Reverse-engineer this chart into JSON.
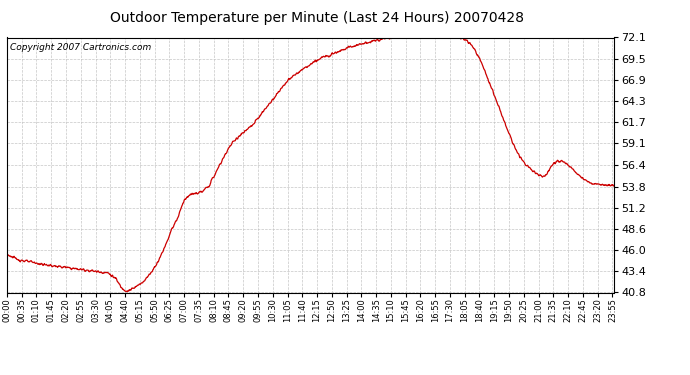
{
  "title": "Outdoor Temperature per Minute (Last 24 Hours) 20070428",
  "copyright_text": "Copyright 2007 Cartronics.com",
  "line_color": "#cc0000",
  "background_color": "#ffffff",
  "plot_bg_color": "#ffffff",
  "grid_color": "#c0c0c0",
  "ylim": [
    40.8,
    72.1
  ],
  "yticks": [
    40.8,
    43.4,
    46.0,
    48.6,
    51.2,
    53.8,
    56.4,
    59.1,
    61.7,
    64.3,
    66.9,
    69.5,
    72.1
  ],
  "xtick_labels": [
    "00:00",
    "00:35",
    "01:10",
    "01:45",
    "02:20",
    "02:55",
    "03:30",
    "04:05",
    "04:40",
    "05:15",
    "05:50",
    "06:25",
    "07:00",
    "07:35",
    "08:10",
    "08:45",
    "09:20",
    "09:55",
    "10:30",
    "11:05",
    "11:40",
    "12:15",
    "12:50",
    "13:25",
    "14:00",
    "14:35",
    "15:10",
    "15:45",
    "16:20",
    "16:55",
    "17:30",
    "18:05",
    "18:40",
    "19:15",
    "19:50",
    "20:25",
    "21:00",
    "21:35",
    "22:10",
    "22:45",
    "23:20",
    "23:55"
  ],
  "ctrl_hours": [
    0,
    0.3,
    0.5,
    1.0,
    1.5,
    2.0,
    2.5,
    3.0,
    3.5,
    4.0,
    4.3,
    4.5,
    4.6,
    4.75,
    5.0,
    5.25,
    5.5,
    5.75,
    6.0,
    6.25,
    6.5,
    6.75,
    7.0,
    7.25,
    7.5,
    7.75,
    8.0,
    8.25,
    8.5,
    8.75,
    9.0,
    9.25,
    9.5,
    9.75,
    10.0,
    10.25,
    10.5,
    10.75,
    11.0,
    11.25,
    11.5,
    11.75,
    12.0,
    12.25,
    12.5,
    12.75,
    13.0,
    13.25,
    13.5,
    13.75,
    14.0,
    14.25,
    14.5,
    14.75,
    15.0,
    15.25,
    15.5,
    15.75,
    16.0,
    16.25,
    16.5,
    16.75,
    17.0,
    17.25,
    17.5,
    17.75,
    18.0,
    18.25,
    18.5,
    18.75,
    19.0,
    19.25,
    19.5,
    19.75,
    20.0,
    20.25,
    20.5,
    20.75,
    21.0,
    21.25,
    21.5,
    21.75,
    22.0,
    22.25,
    22.5,
    22.75,
    23.0,
    23.25,
    23.5,
    23.75,
    23.99
  ],
  "ctrl_temps": [
    45.5,
    45.0,
    44.8,
    44.5,
    44.2,
    44.0,
    43.8,
    43.6,
    43.4,
    43.2,
    42.5,
    41.5,
    41.2,
    41.0,
    41.3,
    41.8,
    42.5,
    43.5,
    44.8,
    46.5,
    48.5,
    50.0,
    52.2,
    52.8,
    53.0,
    53.2,
    54.0,
    55.5,
    57.0,
    58.5,
    59.5,
    60.2,
    60.8,
    61.5,
    62.5,
    63.5,
    64.5,
    65.5,
    66.5,
    67.2,
    67.8,
    68.3,
    68.8,
    69.3,
    69.7,
    70.0,
    70.3,
    70.6,
    70.9,
    71.1,
    71.3,
    71.5,
    71.7,
    71.85,
    72.0,
    72.1,
    72.2,
    72.25,
    72.3,
    72.35,
    72.38,
    72.4,
    72.38,
    72.35,
    72.3,
    72.2,
    72.0,
    71.5,
    70.5,
    69.0,
    67.0,
    65.0,
    63.0,
    61.0,
    59.0,
    57.5,
    56.5,
    55.8,
    55.2,
    55.0,
    56.3,
    57.0,
    56.8,
    56.2,
    55.5,
    54.8,
    54.3,
    54.1,
    54.0,
    53.95,
    53.9
  ]
}
